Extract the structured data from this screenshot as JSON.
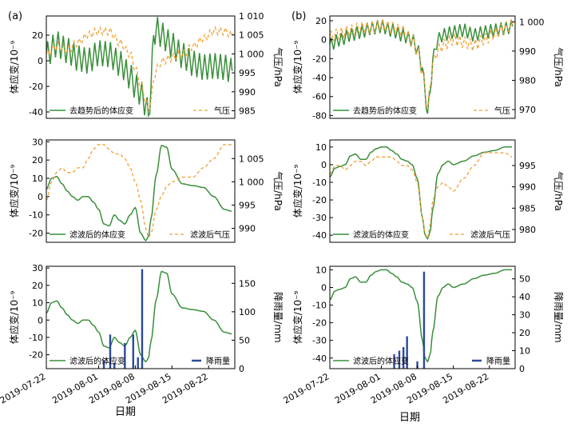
{
  "panel_labels": {
    "a": "(a)",
    "b": "(b)"
  },
  "xlabels": {
    "a": "日期",
    "b": "日期"
  },
  "colors": {
    "strain": "#3a8f3a",
    "pressure": "#f0a033",
    "rain": "#2b4a9c"
  },
  "chart_data": [
    {
      "id": "a1",
      "type": "line",
      "ylabel": "体应变/10⁻⁹",
      "y2label": "气压/hPa",
      "ylim": [
        -45,
        35
      ],
      "yticks": [
        -40,
        -20,
        0,
        20
      ],
      "y2lim": [
        983,
        1010
      ],
      "y2ticks": [
        985,
        990,
        995,
        1000,
        1005,
        1010
      ],
      "y2ticklabels": [
        "985",
        "990",
        "995",
        "1 000",
        "1 005",
        "1 010"
      ],
      "xlim": [
        0,
        36
      ],
      "xticks": [],
      "series": [
        {
          "name": "去趋势后的体应变",
          "axis": "left",
          "style": "solid",
          "x": [
            0,
            2,
            4,
            6,
            8,
            10,
            12,
            14,
            16,
            17,
            18,
            19,
            19.5,
            20,
            20.5,
            21,
            22,
            24,
            26,
            28,
            30,
            32,
            34,
            35.5
          ],
          "values": [
            5,
            13,
            8,
            2,
            0,
            6,
            5,
            -2,
            -12,
            -20,
            -25,
            -34,
            -43,
            -20,
            20,
            25,
            20,
            12,
            4,
            -2,
            -5,
            -4,
            -5,
            -8
          ],
          "oscillation": 10,
          "noise_period": 1
        },
        {
          "name": "气压",
          "axis": "right",
          "style": "dashed",
          "x": [
            0,
            2,
            4,
            6,
            8,
            10,
            12,
            14,
            16,
            17,
            18,
            19,
            19.5,
            20,
            20.5,
            21,
            22,
            24,
            26,
            28,
            30,
            32,
            34,
            35.5
          ],
          "values": [
            1000,
            1002,
            1001,
            1003,
            1005,
            1006,
            1006,
            1003,
            1000,
            996,
            992,
            988,
            985,
            988,
            993,
            996,
            998,
            999,
            1000,
            1002,
            1004,
            1006,
            1006,
            1005
          ],
          "oscillation": 1,
          "noise_period": 1
        }
      ],
      "legend": [
        {
          "label": "去趋势后的体应变",
          "series": "strain"
        },
        {
          "label": "气压",
          "series": "pressure"
        }
      ]
    },
    {
      "id": "a2",
      "type": "line",
      "ylabel": "体应变/10⁻⁹",
      "y2label": "气压/hPa",
      "ylim": [
        -25,
        31
      ],
      "yticks": [
        -20,
        -10,
        0,
        10,
        20,
        30
      ],
      "y2lim": [
        987,
        1009
      ],
      "y2ticks": [
        990,
        995,
        1000,
        1005
      ],
      "y2ticklabels": [
        "990",
        "995",
        "1 000",
        "1 005"
      ],
      "xlim": [
        0,
        36
      ],
      "xticks": [],
      "series": [
        {
          "name": "滤波后的体应变",
          "axis": "left",
          "style": "solid",
          "x": [
            0,
            1,
            2,
            3,
            4,
            5,
            6,
            7,
            8,
            9,
            10,
            11,
            12,
            13,
            14,
            15,
            16,
            17,
            18,
            19,
            19.5,
            20,
            21,
            22,
            23,
            24,
            26,
            28,
            30,
            32,
            34,
            35.5
          ],
          "values": [
            4,
            10,
            11,
            7,
            3,
            0,
            -2,
            0,
            0,
            -3,
            -7,
            -15,
            -16,
            -10,
            -13,
            -15,
            -10,
            -6,
            -20,
            -24,
            -22,
            -12,
            12,
            28,
            27,
            15,
            7,
            6,
            5,
            0,
            -7,
            -8
          ],
          "smooth": true
        },
        {
          "name": "滤波后气压",
          "axis": "right",
          "style": "dashed",
          "x": [
            0,
            1,
            2,
            3,
            4,
            5,
            6,
            7,
            8,
            9,
            10,
            11,
            12,
            13,
            14,
            15,
            16,
            17,
            18,
            19,
            19.5,
            20,
            21,
            22,
            23,
            24,
            26,
            28,
            30,
            32,
            34,
            35.5
          ],
          "values": [
            996,
            1000,
            1002,
            1003,
            1002,
            1002,
            1003,
            1003,
            1005,
            1007,
            1008,
            1008,
            1007,
            1006,
            1006,
            1005,
            1003,
            1000,
            996,
            990,
            988,
            989,
            994,
            997,
            999,
            1000,
            1001,
            1001,
            1003,
            1005,
            1008,
            1008
          ],
          "smooth": true
        }
      ],
      "legend": [
        {
          "label": "滤波后的体应变",
          "series": "strain"
        },
        {
          "label": "滤波后气压",
          "series": "pressure"
        }
      ]
    },
    {
      "id": "a3",
      "type": "line+bar",
      "ylabel": "体应变/10⁻⁹",
      "y2label": "降雨量/mm",
      "ylim": [
        -28,
        31
      ],
      "yticks": [
        -20,
        -10,
        0,
        10,
        20,
        30
      ],
      "y2lim": [
        0,
        180
      ],
      "y2ticks": [
        0,
        50,
        100,
        150
      ],
      "y2ticklabels": [
        "0",
        "50",
        "100",
        "150"
      ],
      "xlim": [
        0,
        36
      ],
      "xticks": [
        0,
        10,
        17,
        24,
        31
      ],
      "xticklabels": [
        "2019-07-22",
        "2019-08-01",
        "2019-08-08",
        "2019-08-15",
        "2019-08-22"
      ],
      "series": [
        {
          "name": "滤波后的体应变",
          "axis": "left",
          "style": "solid",
          "x": [
            0,
            1,
            2,
            3,
            4,
            5,
            6,
            7,
            8,
            9,
            10,
            11,
            12,
            13,
            14,
            15,
            16,
            17,
            18,
            19,
            19.5,
            20,
            21,
            22,
            23,
            24,
            26,
            28,
            30,
            32,
            34,
            35.5
          ],
          "values": [
            4,
            10,
            11,
            7,
            3,
            0,
            -2,
            0,
            0,
            -3,
            -7,
            -15,
            -16,
            -10,
            -13,
            -15,
            -10,
            -6,
            -20,
            -24,
            -22,
            -12,
            12,
            28,
            27,
            15,
            7,
            6,
            5,
            0,
            -7,
            -8
          ],
          "smooth": true
        },
        {
          "name": "降雨量",
          "axis": "right",
          "type": "bar",
          "x": [
            11,
            12.2,
            13,
            15,
            16.6,
            17.5,
            18.3
          ],
          "values": [
            15,
            60,
            10,
            45,
            60,
            20,
            175
          ]
        }
      ],
      "legend": [
        {
          "label": "滤波后的体应变",
          "series": "strain"
        },
        {
          "label": "降雨量",
          "series": "rain"
        }
      ]
    },
    {
      "id": "b1",
      "type": "line",
      "ylabel": "体应变/10⁻⁹",
      "y2label": "气压/hPa",
      "ylim": [
        -83,
        25
      ],
      "yticks": [
        -80,
        -60,
        -40,
        -20,
        0,
        20
      ],
      "y2lim": [
        967,
        1002
      ],
      "y2ticks": [
        970,
        980,
        990,
        1000
      ],
      "y2ticklabels": [
        "970",
        "980",
        "990",
        "1 000"
      ],
      "xlim": [
        0,
        36
      ],
      "xticks": [],
      "series": [
        {
          "name": "去趋势后的体应变",
          "axis": "left",
          "style": "solid",
          "x": [
            0,
            2,
            4,
            6,
            8,
            10,
            12,
            14,
            16,
            17,
            18,
            18.5,
            19,
            19.5,
            20,
            21,
            22,
            24,
            26,
            28,
            30,
            32,
            34,
            35.5
          ],
          "values": [
            -5,
            0,
            5,
            8,
            12,
            14,
            10,
            5,
            0,
            -10,
            -30,
            -55,
            -78,
            -55,
            -20,
            0,
            5,
            8,
            10,
            5,
            8,
            10,
            12,
            14
          ],
          "oscillation": 7,
          "noise_period": 1
        },
        {
          "name": "气压",
          "axis": "right",
          "style": "dashed",
          "x": [
            0,
            2,
            4,
            6,
            8,
            10,
            12,
            14,
            16,
            17,
            18,
            18.5,
            19,
            19.5,
            20,
            21,
            22,
            24,
            26,
            28,
            30,
            32,
            34,
            35.5
          ],
          "values": [
            995,
            996,
            997,
            998,
            998,
            999,
            998,
            997,
            994,
            990,
            983,
            977,
            970,
            978,
            986,
            990,
            992,
            994,
            993,
            992,
            994,
            996,
            998,
            999
          ],
          "oscillation": 2,
          "noise_period": 1
        }
      ],
      "legend": [
        {
          "label": "去趋势后的体应变",
          "series": "strain"
        },
        {
          "label": "气压",
          "series": "pressure"
        }
      ]
    },
    {
      "id": "b2",
      "type": "line",
      "ylabel": "体应变/10⁻⁹",
      "y2label": "气压/hPa",
      "ylim": [
        -44,
        14
      ],
      "yticks": [
        -40,
        -30,
        -20,
        -10,
        0,
        10
      ],
      "y2lim": [
        977,
        1001
      ],
      "y2ticks": [
        980,
        985,
        990,
        995
      ],
      "y2ticklabels": [
        "980",
        "985",
        "990",
        "995"
      ],
      "xlim": [
        0,
        36
      ],
      "xticks": [],
      "series": [
        {
          "name": "滤波后的体应变",
          "axis": "left",
          "style": "solid",
          "x": [
            0,
            1,
            2,
            3,
            4,
            5,
            6,
            7,
            8,
            9,
            10,
            11,
            12,
            13,
            14,
            15,
            16,
            17,
            18,
            18.5,
            19,
            19.5,
            20,
            21,
            22,
            23,
            24,
            26,
            28,
            30,
            32,
            34,
            35.5
          ],
          "values": [
            -7,
            -2,
            -1,
            0,
            5,
            6,
            3,
            3,
            7,
            9,
            10,
            10,
            8,
            6,
            3,
            2,
            0,
            -8,
            -30,
            -40,
            -42,
            -38,
            -25,
            -5,
            0,
            2,
            0,
            2,
            5,
            7,
            8,
            10,
            10
          ],
          "smooth": true
        },
        {
          "name": "滤波后气压",
          "axis": "right",
          "style": "dashed",
          "x": [
            0,
            1,
            2,
            3,
            4,
            5,
            6,
            7,
            8,
            9,
            10,
            11,
            12,
            13,
            14,
            15,
            16,
            17,
            18,
            18.5,
            19,
            19.5,
            20,
            21,
            22,
            23,
            24,
            26,
            28,
            30,
            32,
            34,
            35.5
          ],
          "values": [
            993,
            995,
            995,
            994,
            995,
            996,
            996,
            995,
            996,
            997,
            997,
            997,
            997,
            996,
            995,
            995,
            994,
            991,
            983,
            979,
            978,
            981,
            987,
            990,
            991,
            990,
            989,
            992,
            995,
            998,
            998,
            998,
            997
          ],
          "smooth": true
        }
      ],
      "legend": [
        {
          "label": "滤波后的体应变",
          "series": "strain"
        },
        {
          "label": "滤波后气压",
          "series": "pressure"
        }
      ]
    },
    {
      "id": "b3",
      "type": "line+bar",
      "ylabel": "体应变/10⁻⁹",
      "y2label": "降雨量/mm",
      "ylim": [
        -46,
        12
      ],
      "yticks": [
        -40,
        -30,
        -20,
        -10,
        0,
        10
      ],
      "y2lim": [
        0,
        57
      ],
      "y2ticks": [
        0,
        10,
        20,
        30,
        40,
        50
      ],
      "y2ticklabels": [
        "0",
        "10",
        "20",
        "30",
        "40",
        "50"
      ],
      "xlim": [
        0,
        36
      ],
      "xticks": [
        0,
        10,
        17,
        24,
        31
      ],
      "xticklabels": [
        "2019-07-22",
        "2019-08-01",
        "2019-08-08",
        "2019-08-15",
        "2019-08-22"
      ],
      "series": [
        {
          "name": "滤波后的体应变",
          "axis": "left",
          "style": "solid",
          "x": [
            0,
            1,
            2,
            3,
            4,
            5,
            6,
            7,
            8,
            9,
            10,
            11,
            12,
            13,
            14,
            15,
            16,
            17,
            18,
            18.5,
            19,
            19.5,
            20,
            21,
            22,
            23,
            24,
            26,
            28,
            30,
            32,
            34,
            35.5
          ],
          "values": [
            -7,
            -2,
            -1,
            0,
            5,
            6,
            3,
            3,
            7,
            9,
            10,
            10,
            8,
            6,
            3,
            2,
            0,
            -8,
            -30,
            -40,
            -42,
            -38,
            -25,
            -5,
            0,
            2,
            0,
            2,
            5,
            7,
            8,
            10,
            10
          ],
          "smooth": true
        },
        {
          "name": "降雨量",
          "axis": "right",
          "type": "bar",
          "x": [
            12.5,
            13.5,
            14.3,
            15,
            17,
            18.3
          ],
          "values": [
            8,
            10,
            12,
            18,
            4,
            54
          ]
        }
      ],
      "legend": [
        {
          "label": "滤波后的体应变",
          "series": "strain"
        },
        {
          "label": "降雨量",
          "series": "rain"
        }
      ]
    }
  ]
}
